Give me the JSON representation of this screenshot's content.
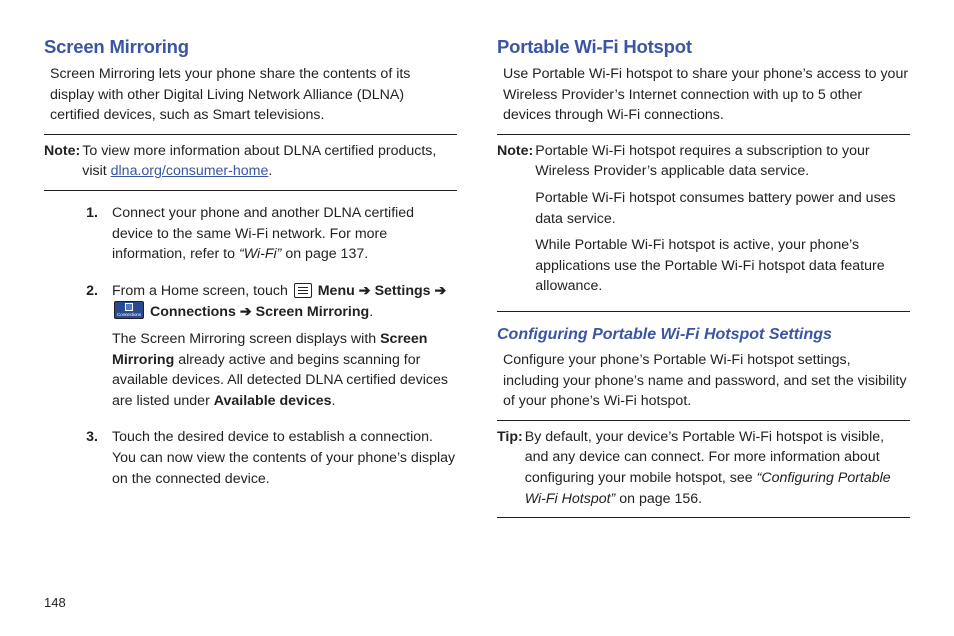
{
  "page_number": "148",
  "colors": {
    "heading": "#3b55a4",
    "text": "#231f20",
    "rule": "#231f20",
    "icon_fill": "#2a4a8f"
  },
  "left": {
    "heading": "Screen Mirroring",
    "intro": "Screen Mirroring lets your phone share the contents of its display with other Digital Living Network Alliance (DLNA) certified devices, such as Smart televisions.",
    "note_label": "Note:",
    "note_pre": "To view more information about DLNA certified products, visit ",
    "note_link": "dlna.org/consumer-home",
    "note_post": ".",
    "step1_pre": "Connect your phone and another DLNA certified device to the same Wi-Fi network. For more information, refer to ",
    "step1_ref": "“Wi-Fi”",
    "step1_post": " on page 137.",
    "step2_pre": "From a Home screen, touch ",
    "menu": "Menu",
    "arrow": "➔",
    "settings": "Settings",
    "connections_icon_label": "Connections",
    "connections": "Connections",
    "screen_mirroring": "Screen Mirroring",
    "period": ".",
    "step2_p2a": "The Screen Mirroring screen displays with ",
    "step2_p2b": "Screen Mirroring",
    "step2_p2c": " already active and begins scanning for available devices. All detected DLNA certified devices are listed under ",
    "step2_p2d": "Available devices",
    "step3": "Touch the desired device to establish a connection. You can now view the contents of your phone’s display on the connected device."
  },
  "right": {
    "heading": "Portable Wi-Fi Hotspot",
    "intro": "Use Portable Wi-Fi hotspot to share your phone’s access to your Wireless Provider’s Internet connection with up to 5 other devices through Wi-Fi connections.",
    "note_label": "Note:",
    "note1": "Portable Wi-Fi hotspot requires a subscription to your Wireless Provider’s applicable data service.",
    "note2": "Portable Wi-Fi hotspot consumes battery power and uses data service.",
    "note3": "While Portable Wi-Fi hotspot is active, your phone’s applications use the Portable Wi-Fi hotspot data feature allowance.",
    "sub_heading": "Configuring Portable Wi-Fi Hotspot Settings",
    "sub_body": "Configure your phone’s Portable Wi-Fi hotspot settings, including your phone’s name and password, and set the visibility of your phone’s Wi-Fi hotspot.",
    "tip_label": "Tip:",
    "tip_pre": "By default, your device’s Portable Wi-Fi hotspot is visible, and any device can connect. For more information about configuring your mobile hotspot, see ",
    "tip_ref": "“Configuring Portable Wi-Fi Hotspot”",
    "tip_post": " on page 156."
  }
}
